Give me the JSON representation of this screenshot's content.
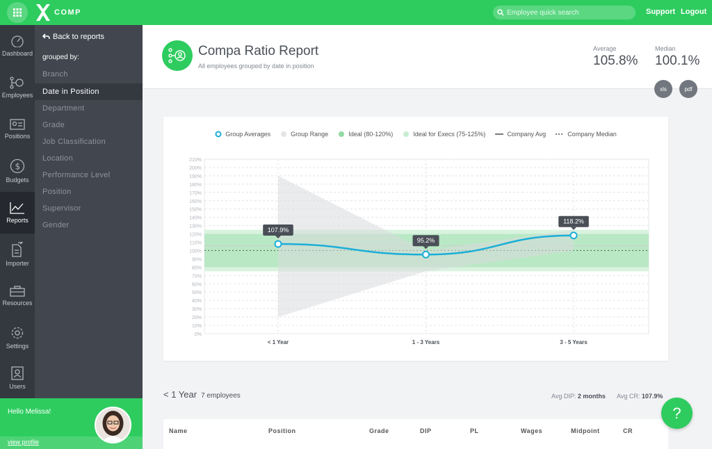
{
  "topbar": {
    "logo_text": "COMP",
    "search_placeholder": "Employee quick search",
    "support_label": "Support",
    "logout_label": "Logout"
  },
  "nav": {
    "items": [
      {
        "label": "Dashboard",
        "icon": "gauge-icon"
      },
      {
        "label": "Employees",
        "icon": "org-chart-icon"
      },
      {
        "label": "Positions",
        "icon": "id-card-icon"
      },
      {
        "label": "Budgets",
        "icon": "dollar-icon"
      },
      {
        "label": "Reports",
        "icon": "line-chart-icon",
        "active": true
      },
      {
        "label": "Importer",
        "icon": "import-icon"
      },
      {
        "label": "Resources",
        "icon": "toolbox-icon"
      },
      {
        "label": "Settings",
        "icon": "gear-icon"
      },
      {
        "label": "Users",
        "icon": "users-icon"
      }
    ]
  },
  "subnav": {
    "back_label": "Back to reports",
    "grouped_label": "grouped by:",
    "items": [
      {
        "label": "Branch"
      },
      {
        "label": "Date in Position",
        "active": true
      },
      {
        "label": "Department"
      },
      {
        "label": "Grade"
      },
      {
        "label": "Job Classification"
      },
      {
        "label": "Location"
      },
      {
        "label": "Performance Level"
      },
      {
        "label": "Position"
      },
      {
        "label": "Supervisor"
      },
      {
        "label": "Gender"
      }
    ]
  },
  "user": {
    "greeting": "Hello Melissa!",
    "profile_link": "view profile"
  },
  "header": {
    "title": "Compa Ratio Report",
    "subtitle": "All employees grouped by date in position",
    "average_label": "Average",
    "average_value": "105.8%",
    "median_label": "Median",
    "median_value": "100.1%",
    "xls_label": "xls",
    "pdf_label": "pdf"
  },
  "legend": {
    "group_averages": "Group Averages",
    "group_range": "Group Range",
    "ideal": "Ideal (80-120%)",
    "ideal_execs": "Ideal for Execs (75-125%)",
    "company_avg": "Company Avg",
    "company_median": "Company Median"
  },
  "colors": {
    "brand_green": "#2ecc5f",
    "line_blue": "#1aaed8",
    "range_gray": "#d9dadd",
    "ideal_green": "#a8e2b5",
    "execs_green": "#d2f1d9"
  },
  "chart_data": {
    "type": "line",
    "categories": [
      "< 1 Year",
      "1 - 3 Years",
      "3 - 5 Years"
    ],
    "series": [
      {
        "name": "Group Averages",
        "values": [
          107.9,
          95.2,
          118.2
        ],
        "labels": [
          "107.9%",
          "95.2%",
          "118.2%"
        ]
      },
      {
        "name": "Group Range",
        "low": [
          20,
          75,
          100
        ],
        "high": [
          190,
          100,
          125
        ]
      }
    ],
    "bands": [
      {
        "name": "Ideal (80-120%)",
        "low": 80,
        "high": 120
      },
      {
        "name": "Ideal for Execs (75-125%)",
        "low": 75,
        "high": 125
      }
    ],
    "reference_lines": [
      {
        "name": "Company Avg",
        "value": 105.8
      },
      {
        "name": "Company Median",
        "value": 100.1
      }
    ],
    "ylim": [
      0,
      210
    ],
    "yticks": [
      "0%",
      "10%",
      "20%",
      "30%",
      "40%",
      "50%",
      "60%",
      "70%",
      "80%",
      "90%",
      "100%",
      "110%",
      "120%",
      "130%",
      "140%",
      "150%",
      "160%",
      "170%",
      "180%",
      "190%",
      "200%",
      "210%"
    ],
    "legend_position": "top-center",
    "grid": true
  },
  "section": {
    "group": "< 1 Year",
    "employees": "7 employees",
    "avg_dip_label": "Avg DIP:",
    "avg_dip_value": "2 months",
    "avg_cr_label": "Avg CR:",
    "avg_cr_value": "107.9%"
  },
  "table": {
    "columns": [
      "Name",
      "Position",
      "Grade",
      "DIP",
      "PL",
      "Wages",
      "Midpoint",
      "CR"
    ]
  },
  "help_label": "?"
}
